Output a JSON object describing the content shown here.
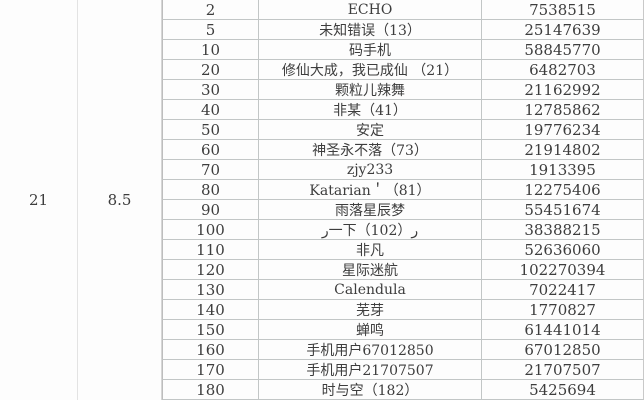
{
  "colors": {
    "background": "#fdfdfd",
    "grid_line": "#c2c6c6",
    "faint_line": "#e3e3e3",
    "text": "#3d3d3d"
  },
  "table": {
    "merged": {
      "col1": "21",
      "col2": "8.5"
    },
    "rows": [
      {
        "rank": "2",
        "name": "ECHO",
        "score": "7538515"
      },
      {
        "rank": "5",
        "name": "未知错误（13）",
        "score": "25147639"
      },
      {
        "rank": "10",
        "name": "码手机",
        "score": "58845770"
      },
      {
        "rank": "20",
        "name": "修仙大成，我已成仙 （21）",
        "score": "6482703"
      },
      {
        "rank": "30",
        "name": "颗粒儿辣舞",
        "score": "21162992"
      },
      {
        "rank": "40",
        "name": "非某（41）",
        "score": "12785862"
      },
      {
        "rank": "50",
        "name": "安定",
        "score": "19776234"
      },
      {
        "rank": "60",
        "name": "神圣永不落（73）",
        "score": "21914802"
      },
      {
        "rank": "70",
        "name": "zjy233",
        "score": "1913395"
      },
      {
        "rank": "80",
        "name": "Katarian＇（81）",
        "score": "12275406"
      },
      {
        "rank": "90",
        "name": "雨落星辰梦",
        "score": "55451674"
      },
      {
        "rank": "100",
        "name": "ر一下ر（102）",
        "score": "38388215"
      },
      {
        "rank": "110",
        "name": "非凡",
        "score": "52636060"
      },
      {
        "rank": "120",
        "name": "星际迷航",
        "score": "102270394"
      },
      {
        "rank": "130",
        "name": "Calendula",
        "score": "7022417"
      },
      {
        "rank": "140",
        "name": "芜芽",
        "score": "1770827"
      },
      {
        "rank": "150",
        "name": "蝉鸣",
        "score": "61441014"
      },
      {
        "rank": "160",
        "name": "手机用户67012850",
        "score": "67012850"
      },
      {
        "rank": "170",
        "name": "手机用户21707507",
        "score": "21707507"
      },
      {
        "rank": "180",
        "name": "时与空（182）",
        "score": "5425694"
      }
    ]
  }
}
